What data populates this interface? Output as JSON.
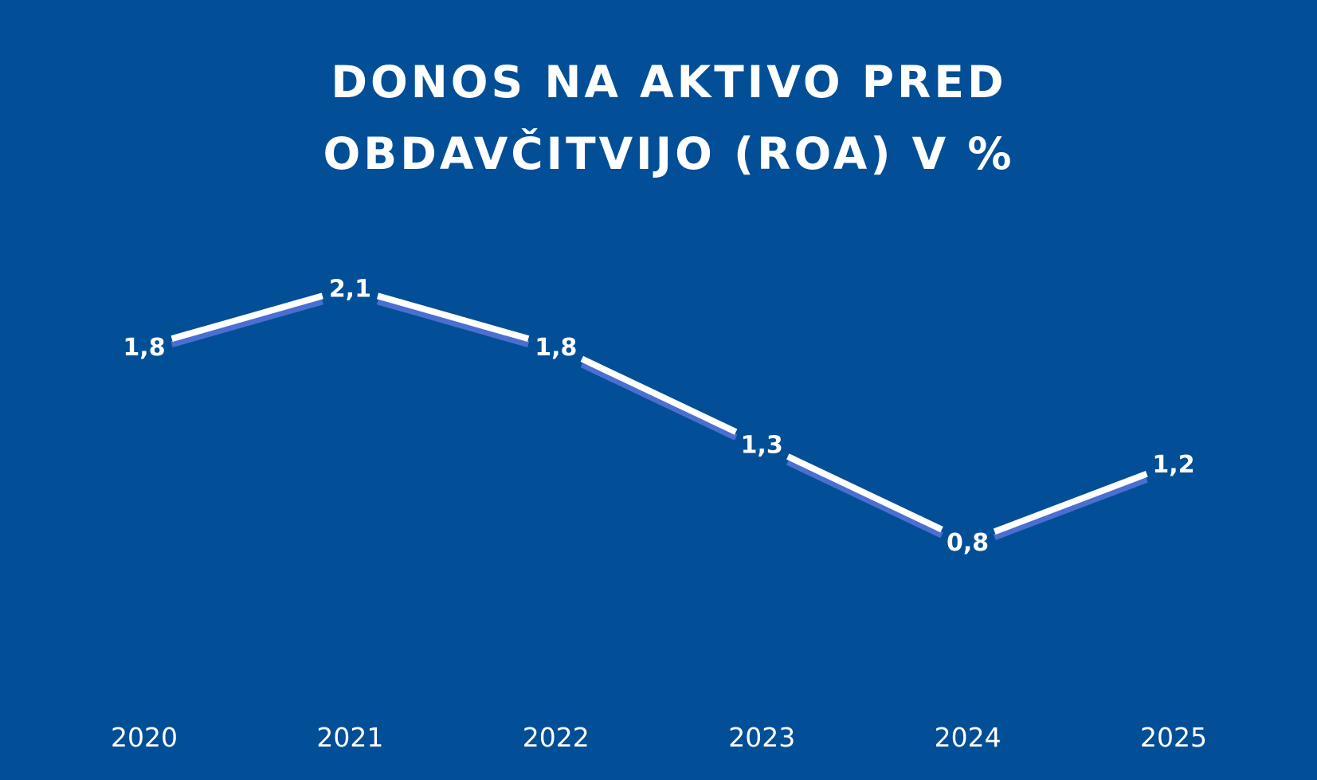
{
  "chart_data": {
    "type": "line",
    "title_lines": [
      "DONOS NA AKTIVO PRED",
      "OBDAVČITVIJO (ROA) V %"
    ],
    "categories": [
      "2020",
      "2021",
      "2022",
      "2023",
      "2024",
      "2025"
    ],
    "values": [
      1.8,
      2.1,
      1.8,
      1.3,
      0.8,
      1.2
    ],
    "value_labels": [
      "1,8",
      "2,1",
      "1,8",
      "1,3",
      "0,8",
      "1,2"
    ],
    "xlabel": "",
    "ylabel": "",
    "grid": false,
    "legend": "none",
    "colors": {
      "background": "#024f97",
      "line": "#ffffff",
      "line_shadow": "#4a6fd0",
      "text": "#ffffff"
    }
  }
}
